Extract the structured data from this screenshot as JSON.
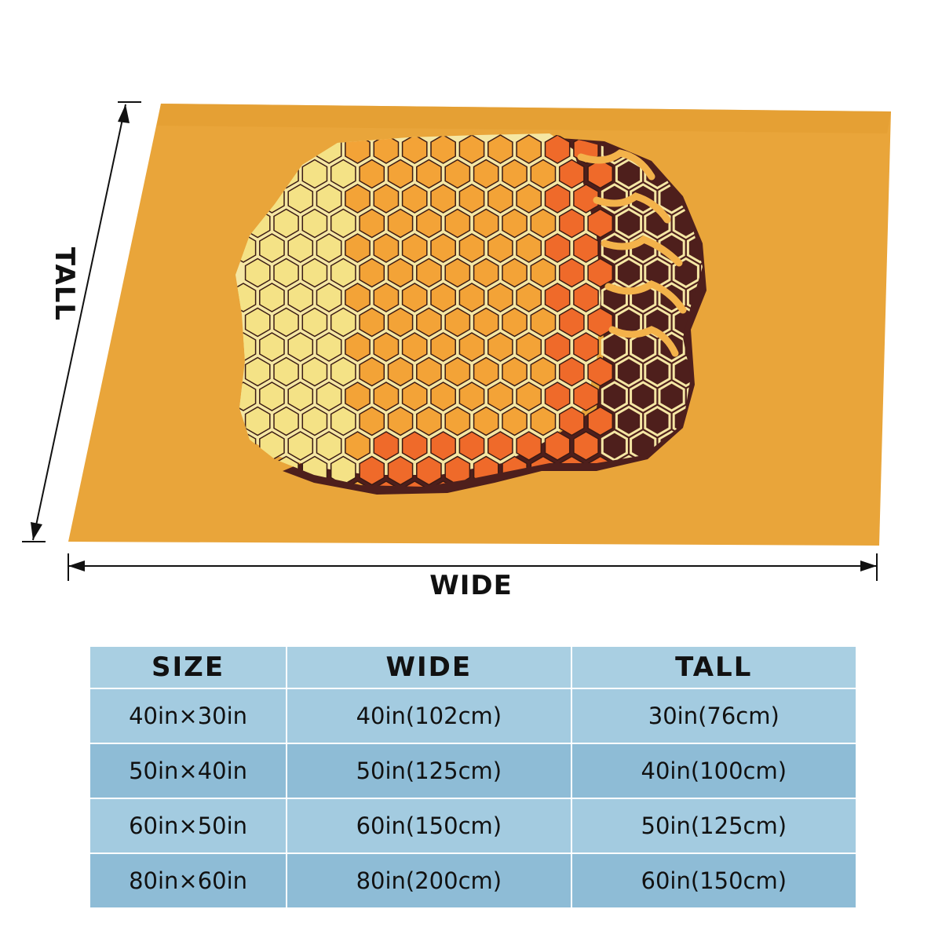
{
  "colors": {
    "blanket_orange": "#e9a53a",
    "honey_light": "#f4e286",
    "honey_orange": "#f3a337",
    "honey_red": "#ef6a2a",
    "comb_dark": "#4e1f1c",
    "wax_outline": "#f5e7a4",
    "table_header": "#a9cfe2",
    "table_row_a": "#a3cbe0",
    "table_row_b": "#8ebcd6"
  },
  "dimensions": {
    "wide_label": "WIDE",
    "tall_label": "TALL"
  },
  "size_table": {
    "headers": [
      "SIZE",
      "WIDE",
      "TALL"
    ],
    "rows": [
      [
        "40in×30in",
        "40in(102cm)",
        "30in(76cm)"
      ],
      [
        "50in×40in",
        "50in(125cm)",
        "40in(100cm)"
      ],
      [
        "60in×50in",
        "60in(150cm)",
        "50in(125cm)"
      ],
      [
        "80in×60in",
        "80in(200cm)",
        "60in(150cm)"
      ]
    ]
  }
}
